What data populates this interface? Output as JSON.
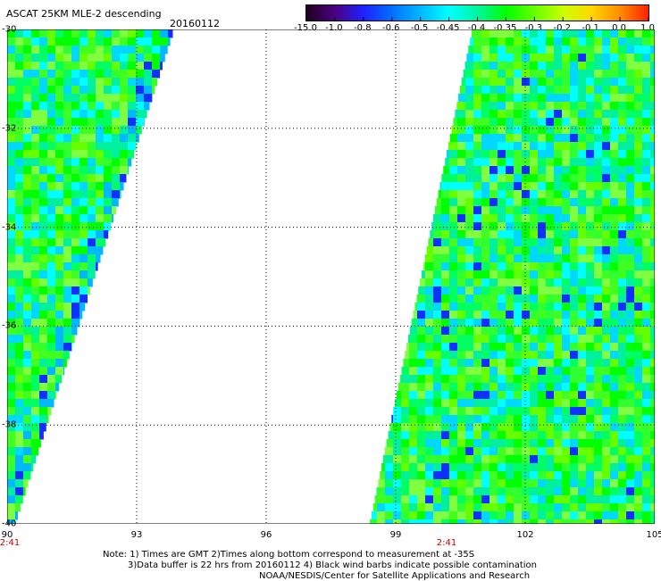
{
  "header": {
    "title": "ASCAT 25KM MLE-2 descending",
    "date": "20160112"
  },
  "colorbar": {
    "labels": [
      "-15.0",
      "-1.0",
      "-0.8",
      "-0.6",
      "-0.5",
      "-0.45",
      "-0.4",
      "-0.35",
      "-0.3",
      "-0.2",
      "-0.1",
      "0.0",
      "1.0"
    ],
    "colors": [
      "#200020",
      "#4b0082",
      "#2020ff",
      "#0070ff",
      "#00b8ff",
      "#00ffff",
      "#00f5a0",
      "#00ff00",
      "#66ff00",
      "#ccff00",
      "#ffd700",
      "#ff8c00",
      "#ff2000"
    ]
  },
  "axes": {
    "x_ticks": [
      "90",
      "93",
      "96",
      "99",
      "102",
      "105"
    ],
    "y_ticks": [
      "-30",
      "-32",
      "-34",
      "-36",
      "-38",
      "-40"
    ],
    "x_range": [
      90,
      105
    ],
    "y_range": [
      -30,
      -40
    ]
  },
  "times": {
    "left": "2:41",
    "right": "2:41"
  },
  "footer": {
    "line1": "Note: 1) Times are GMT 2)Times along bottom correspond to measurement at -35S",
    "line2": "3)Data buffer is 22 hrs from 20160112 4) Black wind barbs indicate possible contamination",
    "line3": "NOAA/NESDIS/Center for Satellite Applications and Research"
  }
}
